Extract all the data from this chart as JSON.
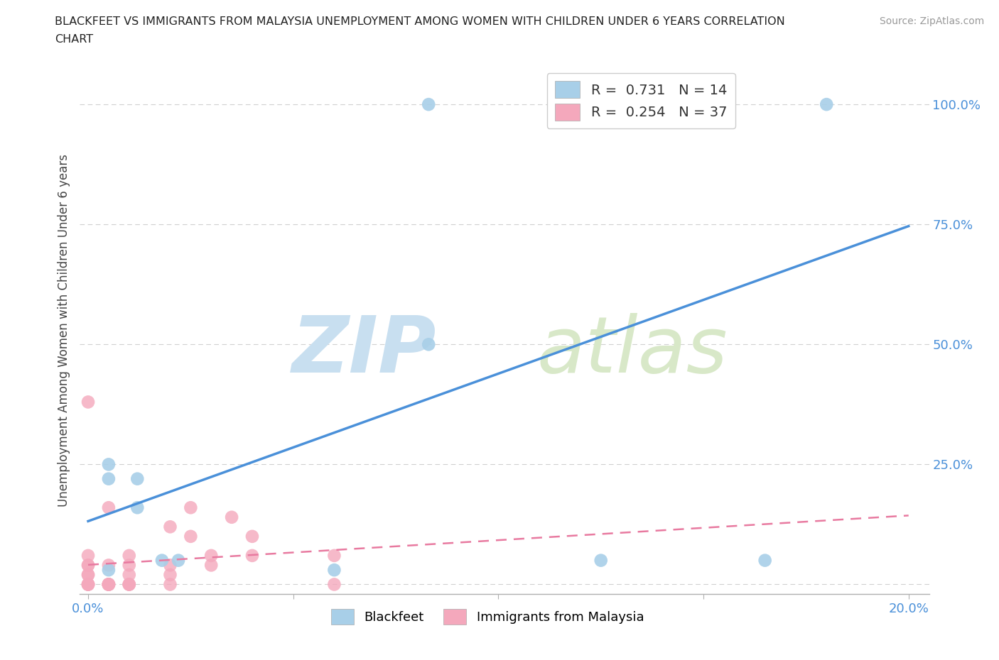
{
  "title_line1": "BLACKFEET VS IMMIGRANTS FROM MALAYSIA UNEMPLOYMENT AMONG WOMEN WITH CHILDREN UNDER 6 YEARS CORRELATION",
  "title_line2": "CHART",
  "source": "Source: ZipAtlas.com",
  "ylabel": "Unemployment Among Women with Children Under 6 years",
  "xlim": [
    -0.002,
    0.205
  ],
  "ylim": [
    -0.02,
    1.08
  ],
  "xtick_positions": [
    0.0,
    0.05,
    0.1,
    0.15,
    0.2
  ],
  "xticklabels": [
    "0.0%",
    "",
    "",
    "",
    "20.0%"
  ],
  "ytick_positions": [
    0.0,
    0.25,
    0.5,
    0.75,
    1.0
  ],
  "yticklabels": [
    "",
    "25.0%",
    "50.0%",
    "75.0%",
    "100.0%"
  ],
  "background_color": "#ffffff",
  "legend_R_blue": "0.731",
  "legend_N_blue": "14",
  "legend_R_pink": "0.254",
  "legend_N_pink": "37",
  "blue_color": "#a8cfe8",
  "pink_color": "#f4a8bc",
  "blue_line_color": "#4a90d9",
  "pink_line_color": "#e87aa0",
  "grid_color": "#d0d0d0",
  "blue_label": "Blackfeet",
  "pink_label": "Immigrants from Malaysia",
  "blue_points_x": [
    0.083,
    0.125,
    0.083,
    0.005,
    0.012,
    0.012,
    0.018,
    0.022,
    0.005,
    0.125,
    0.18,
    0.165,
    0.06,
    0.005
  ],
  "blue_points_y": [
    1.0,
    1.0,
    0.5,
    0.22,
    0.22,
    0.16,
    0.05,
    0.05,
    0.25,
    0.05,
    1.0,
    0.05,
    0.03,
    0.03
  ],
  "pink_points_x": [
    0.0,
    0.0,
    0.0,
    0.0,
    0.0,
    0.0,
    0.0,
    0.0,
    0.0,
    0.0,
    0.005,
    0.005,
    0.005,
    0.005,
    0.01,
    0.01,
    0.01,
    0.01,
    0.01,
    0.02,
    0.02,
    0.02,
    0.02,
    0.025,
    0.025,
    0.03,
    0.03,
    0.035,
    0.04,
    0.04,
    0.005,
    0.06,
    0.06,
    0.01,
    0.005,
    0.005,
    0.005
  ],
  "pink_points_y": [
    0.0,
    0.0,
    0.0,
    0.0,
    0.02,
    0.02,
    0.04,
    0.04,
    0.06,
    0.38,
    0.0,
    0.0,
    0.0,
    0.04,
    0.0,
    0.0,
    0.02,
    0.04,
    0.06,
    0.0,
    0.02,
    0.04,
    0.12,
    0.1,
    0.16,
    0.04,
    0.06,
    0.14,
    0.06,
    0.1,
    0.16,
    0.06,
    0.0,
    0.0,
    0.0,
    0.0,
    0.0
  ],
  "watermark_zip_color": "#c8dff0",
  "watermark_atlas_color": "#d8e8c8"
}
